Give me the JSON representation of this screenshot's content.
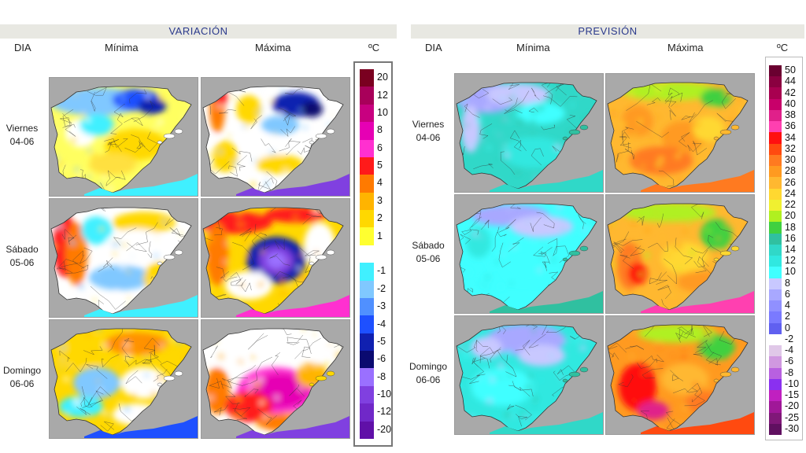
{
  "variacion": {
    "title": "VARIACIÓN",
    "col_dia": "DIA",
    "col_min": "Mínima",
    "col_max": "Máxima",
    "unit": "ºC",
    "legend": [
      {
        "label": "20",
        "color": "#7a0020"
      },
      {
        "label": "12",
        "color": "#a8005a"
      },
      {
        "label": "10",
        "color": "#c80080"
      },
      {
        "label": "8",
        "color": "#e600b4"
      },
      {
        "label": "6",
        "color": "#ff30d0"
      },
      {
        "label": "5",
        "color": "#ff1a1a"
      },
      {
        "label": "4",
        "color": "#ff7a00"
      },
      {
        "label": "3",
        "color": "#ffb400"
      },
      {
        "label": "2",
        "color": "#ffd800"
      },
      {
        "label": "1",
        "color": "#ffff30"
      },
      {
        "label": "",
        "color": "#ffffff"
      },
      {
        "label": "-1",
        "color": "#40f0ff"
      },
      {
        "label": "-2",
        "color": "#80c8ff"
      },
      {
        "label": "-3",
        "color": "#5090ff"
      },
      {
        "label": "-4",
        "color": "#1e50ff"
      },
      {
        "label": "-5",
        "color": "#1020b0"
      },
      {
        "label": "-6",
        "color": "#0a0a70"
      },
      {
        "label": "-8",
        "color": "#9a70ff"
      },
      {
        "label": "-10",
        "color": "#8040e0"
      },
      {
        "label": "-12",
        "color": "#7028c8"
      },
      {
        "label": "-20",
        "color": "#6010a8"
      }
    ]
  },
  "prevision": {
    "title": "PREVISIÓN",
    "col_dia": "DIA",
    "col_min": "Mínima",
    "col_max": "Máxima",
    "unit": "ºC",
    "legend": [
      {
        "label": "50",
        "color": "#6a0030"
      },
      {
        "label": "44",
        "color": "#8a0040"
      },
      {
        "label": "42",
        "color": "#a80050"
      },
      {
        "label": "40",
        "color": "#c8006a"
      },
      {
        "label": "38",
        "color": "#e0208a"
      },
      {
        "label": "36",
        "color": "#ff40b0"
      },
      {
        "label": "34",
        "color": "#ff1010"
      },
      {
        "label": "32",
        "color": "#ff4a10"
      },
      {
        "label": "30",
        "color": "#ff7a20"
      },
      {
        "label": "28",
        "color": "#ff9a20"
      },
      {
        "label": "26",
        "color": "#ffb830"
      },
      {
        "label": "24",
        "color": "#ffd830"
      },
      {
        "label": "22",
        "color": "#f0f030"
      },
      {
        "label": "20",
        "color": "#b0f020"
      },
      {
        "label": "18",
        "color": "#40d040"
      },
      {
        "label": "16",
        "color": "#30c0a0"
      },
      {
        "label": "14",
        "color": "#30d8c8"
      },
      {
        "label": "12",
        "color": "#30e8e0"
      },
      {
        "label": "10",
        "color": "#40ffff"
      },
      {
        "label": "8",
        "color": "#c8c8ff"
      },
      {
        "label": "6",
        "color": "#a8a8ff"
      },
      {
        "label": "4",
        "color": "#9090ff"
      },
      {
        "label": "2",
        "color": "#7a7aff"
      },
      {
        "label": "0",
        "color": "#6060f0"
      },
      {
        "label": "-2",
        "color": "#ffffff"
      },
      {
        "label": "-4",
        "color": "#e0c8e8"
      },
      {
        "label": "-6",
        "color": "#d098e0"
      },
      {
        "label": "-8",
        "color": "#b860e0"
      },
      {
        "label": "-10",
        "color": "#8a30f0"
      },
      {
        "label": "-15",
        "color": "#c020c0"
      },
      {
        "label": "-20",
        "color": "#a01898"
      },
      {
        "label": "-25",
        "color": "#801878"
      },
      {
        "label": "-30",
        "color": "#601060"
      }
    ]
  },
  "days": [
    {
      "name": "Viernes",
      "date": "04-06"
    },
    {
      "name": "Sábado",
      "date": "05-06"
    },
    {
      "name": "Domingo",
      "date": "06-06"
    }
  ],
  "colors": {
    "band_bg": "#e8e8e2",
    "title_text": "#2b3a8c",
    "sea": "#a9a9a9"
  }
}
